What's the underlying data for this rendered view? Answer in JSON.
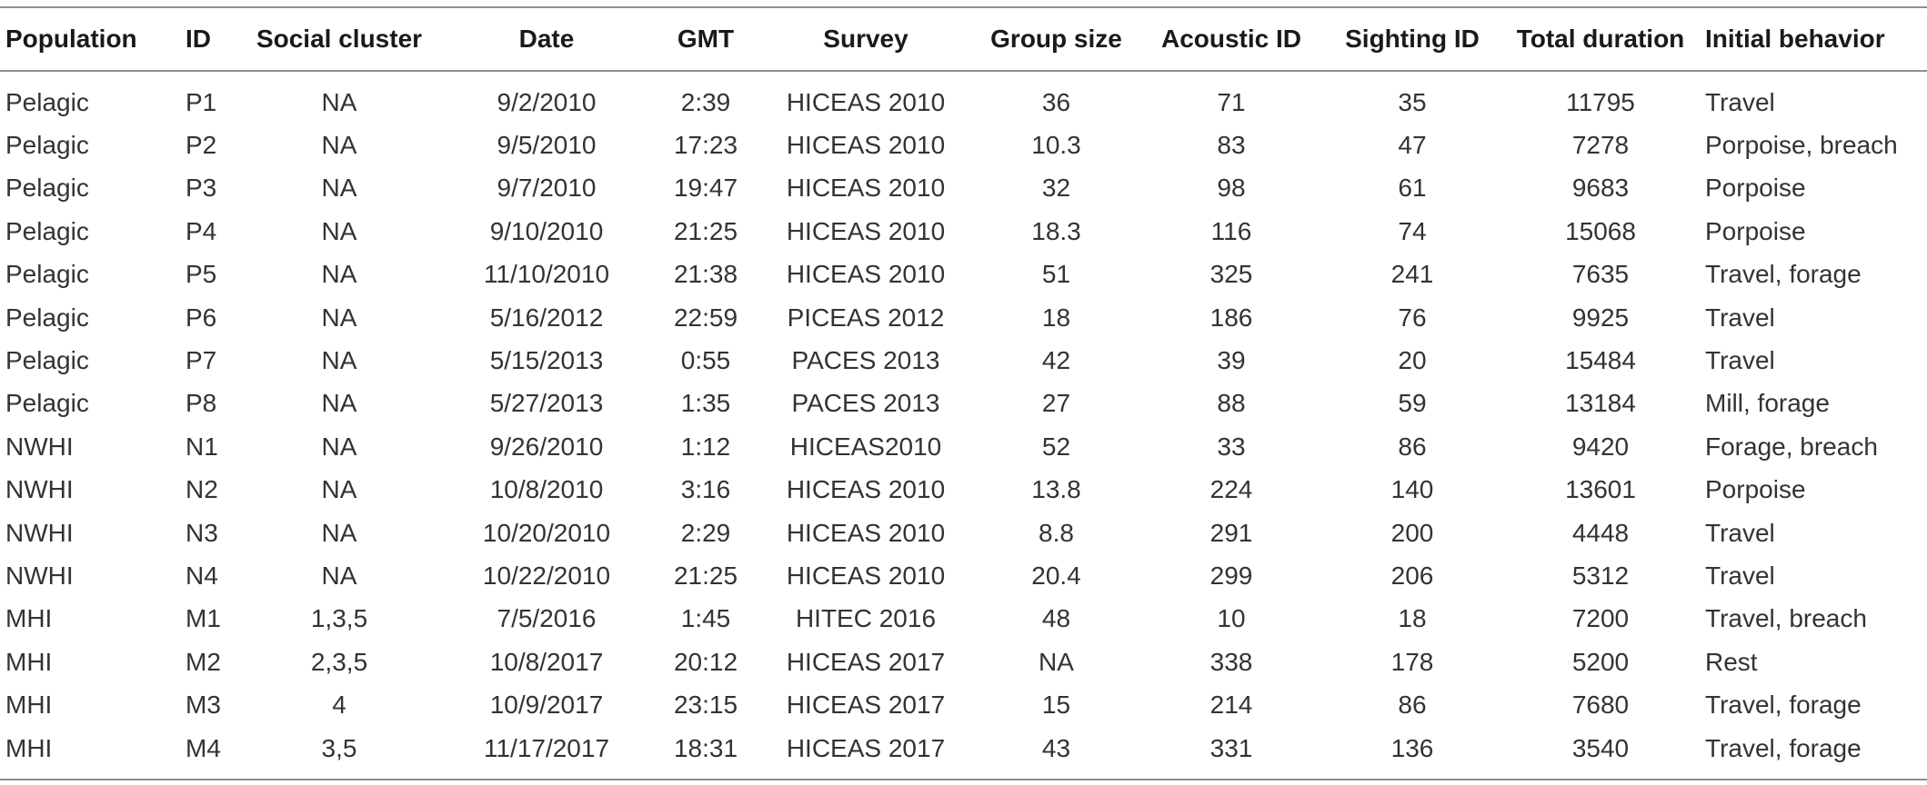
{
  "table": {
    "headers": [
      "Population",
      "ID",
      "Social cluster",
      "Date",
      "GMT",
      "Survey",
      "Group size",
      "Acoustic ID",
      "Sighting ID",
      "Total duration",
      "Initial behavior"
    ],
    "rows": [
      [
        "Pelagic",
        "P1",
        "NA",
        "9/2/2010",
        "2:39",
        "HICEAS 2010",
        "36",
        "71",
        "35",
        "11795",
        "Travel"
      ],
      [
        "Pelagic",
        "P2",
        "NA",
        "9/5/2010",
        "17:23",
        "HICEAS 2010",
        "10.3",
        "83",
        "47",
        "7278",
        "Porpoise, breach"
      ],
      [
        "Pelagic",
        "P3",
        "NA",
        "9/7/2010",
        "19:47",
        "HICEAS 2010",
        "32",
        "98",
        "61",
        "9683",
        "Porpoise"
      ],
      [
        "Pelagic",
        "P4",
        "NA",
        "9/10/2010",
        "21:25",
        "HICEAS 2010",
        "18.3",
        "116",
        "74",
        "15068",
        "Porpoise"
      ],
      [
        "Pelagic",
        "P5",
        "NA",
        "11/10/2010",
        "21:38",
        "HICEAS 2010",
        "51",
        "325",
        "241",
        "7635",
        "Travel, forage"
      ],
      [
        "Pelagic",
        "P6",
        "NA",
        "5/16/2012",
        "22:59",
        "PICEAS 2012",
        "18",
        "186",
        "76",
        "9925",
        "Travel"
      ],
      [
        "Pelagic",
        "P7",
        "NA",
        "5/15/2013",
        "0:55",
        "PACES 2013",
        "42",
        "39",
        "20",
        "15484",
        "Travel"
      ],
      [
        "Pelagic",
        "P8",
        "NA",
        "5/27/2013",
        "1:35",
        "PACES 2013",
        "27",
        "88",
        "59",
        "13184",
        "Mill, forage"
      ],
      [
        "NWHI",
        "N1",
        "NA",
        "9/26/2010",
        "1:12",
        "HICEAS2010",
        "52",
        "33",
        "86",
        "9420",
        "Forage, breach"
      ],
      [
        "NWHI",
        "N2",
        "NA",
        "10/8/2010",
        "3:16",
        "HICEAS 2010",
        "13.8",
        "224",
        "140",
        "13601",
        "Porpoise"
      ],
      [
        "NWHI",
        "N3",
        "NA",
        "10/20/2010",
        "2:29",
        "HICEAS 2010",
        "8.8",
        "291",
        "200",
        "4448",
        "Travel"
      ],
      [
        "NWHI",
        "N4",
        "NA",
        "10/22/2010",
        "21:25",
        "HICEAS 2010",
        "20.4",
        "299",
        "206",
        "5312",
        "Travel"
      ],
      [
        "MHI",
        "M1",
        "1,3,5",
        "7/5/2016",
        "1:45",
        "HITEC 2016",
        "48",
        "10",
        "18",
        "7200",
        "Travel, breach"
      ],
      [
        "MHI",
        "M2",
        "2,3,5",
        "10/8/2017",
        "20:12",
        "HICEAS 2017",
        "NA",
        "338",
        "178",
        "5200",
        "Rest"
      ],
      [
        "MHI",
        "M3",
        "4",
        "10/9/2017",
        "23:15",
        "HICEAS 2017",
        "15",
        "214",
        "86",
        "7680",
        "Travel, forage"
      ],
      [
        "MHI",
        "M4",
        "3,5",
        "11/17/2017",
        "18:31",
        "HICEAS 2017",
        "43",
        "331",
        "136",
        "3540",
        "Travel, forage"
      ]
    ]
  }
}
